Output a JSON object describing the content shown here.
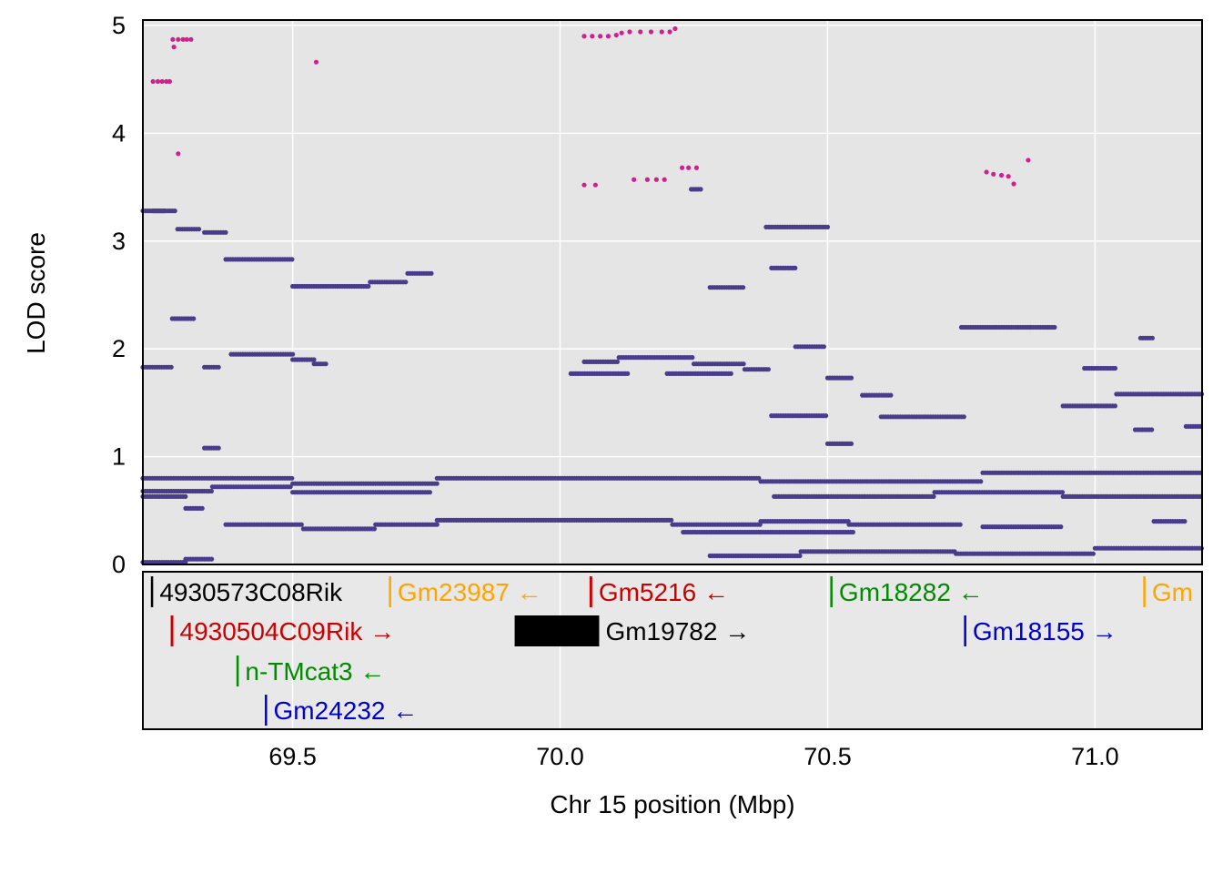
{
  "chart_data": {
    "type": "scatter",
    "title": "",
    "xlabel": "Chr 15 position (Mbp)",
    "ylabel": "LOD score",
    "xlim": [
      69.22,
      71.2
    ],
    "ylim": [
      0,
      5.05
    ],
    "x_ticks": [
      69.5,
      70.0,
      70.5,
      71.0
    ],
    "x_tick_labels": [
      "69.5",
      "70.0",
      "70.5",
      "71.0"
    ],
    "y_ticks": [
      0,
      1,
      2,
      3,
      4,
      5
    ],
    "y_tick_labels": [
      "0",
      "1",
      "2",
      "3",
      "4",
      "5"
    ],
    "grid": true,
    "colors": {
      "panel_bg": "#e5e5e5",
      "grid": "#ffffff",
      "points": "#483d8b",
      "highlight_points": "#d02090",
      "gene_black": "#000000",
      "gene_red": "#cc0000",
      "gene_orange": "#ffa500",
      "gene_green": "#008b00",
      "gene_blue": "#0000cd"
    },
    "highlight_points": [
      {
        "x": 69.239,
        "y": 4.48
      },
      {
        "x": 69.248,
        "y": 4.48
      },
      {
        "x": 69.256,
        "y": 4.48
      },
      {
        "x": 69.264,
        "y": 4.48
      },
      {
        "x": 69.27,
        "y": 4.48
      },
      {
        "x": 69.276,
        "y": 4.87
      },
      {
        "x": 69.278,
        "y": 4.8
      },
      {
        "x": 69.286,
        "y": 4.87
      },
      {
        "x": 69.295,
        "y": 4.87
      },
      {
        "x": 69.302,
        "y": 4.87
      },
      {
        "x": 69.31,
        "y": 4.87
      },
      {
        "x": 69.286,
        "y": 3.81
      },
      {
        "x": 69.544,
        "y": 4.66
      },
      {
        "x": 70.045,
        "y": 4.9
      },
      {
        "x": 70.06,
        "y": 4.9
      },
      {
        "x": 70.075,
        "y": 4.9
      },
      {
        "x": 70.09,
        "y": 4.9
      },
      {
        "x": 70.105,
        "y": 4.91
      },
      {
        "x": 70.115,
        "y": 4.93
      },
      {
        "x": 70.13,
        "y": 4.94
      },
      {
        "x": 70.15,
        "y": 4.94
      },
      {
        "x": 70.17,
        "y": 4.94
      },
      {
        "x": 70.19,
        "y": 4.94
      },
      {
        "x": 70.205,
        "y": 4.94
      },
      {
        "x": 70.215,
        "y": 4.97
      },
      {
        "x": 70.045,
        "y": 3.52
      },
      {
        "x": 70.066,
        "y": 3.52
      },
      {
        "x": 70.138,
        "y": 3.57
      },
      {
        "x": 70.163,
        "y": 3.57
      },
      {
        "x": 70.18,
        "y": 3.57
      },
      {
        "x": 70.195,
        "y": 3.57
      },
      {
        "x": 70.228,
        "y": 3.68
      },
      {
        "x": 70.24,
        "y": 3.68
      },
      {
        "x": 70.255,
        "y": 3.68
      },
      {
        "x": 70.797,
        "y": 3.64
      },
      {
        "x": 70.81,
        "y": 3.62
      },
      {
        "x": 70.825,
        "y": 3.61
      },
      {
        "x": 70.838,
        "y": 3.6
      },
      {
        "x": 70.848,
        "y": 3.53
      },
      {
        "x": 70.875,
        "y": 3.75
      }
    ],
    "point_segments": [
      {
        "x0": 69.22,
        "x1": 69.26,
        "y": 3.28
      },
      {
        "x0": 69.24,
        "x1": 69.28,
        "y": 3.28
      },
      {
        "x0": 69.285,
        "x1": 69.325,
        "y": 3.11
      },
      {
        "x0": 69.335,
        "x1": 69.375,
        "y": 3.08
      },
      {
        "x0": 69.375,
        "x1": 69.5,
        "y": 2.83
      },
      {
        "x0": 69.5,
        "x1": 69.645,
        "y": 2.58
      },
      {
        "x0": 69.645,
        "x1": 69.715,
        "y": 2.62
      },
      {
        "x0": 69.715,
        "x1": 69.76,
        "y": 2.7
      },
      {
        "x0": 69.275,
        "x1": 69.315,
        "y": 2.28
      },
      {
        "x0": 69.22,
        "x1": 69.275,
        "y": 1.83
      },
      {
        "x0": 69.335,
        "x1": 69.365,
        "y": 1.83
      },
      {
        "x0": 69.385,
        "x1": 69.5,
        "y": 1.95
      },
      {
        "x0": 69.5,
        "x1": 69.54,
        "y": 1.9
      },
      {
        "x0": 69.54,
        "x1": 69.565,
        "y": 1.86
      },
      {
        "x0": 70.045,
        "x1": 70.11,
        "y": 1.88
      },
      {
        "x0": 70.11,
        "x1": 70.25,
        "y": 1.92
      },
      {
        "x0": 70.25,
        "x1": 70.345,
        "y": 1.86
      },
      {
        "x0": 70.345,
        "x1": 70.39,
        "y": 1.81
      },
      {
        "x0": 70.02,
        "x1": 70.13,
        "y": 1.77
      },
      {
        "x0": 70.2,
        "x1": 70.32,
        "y": 1.77
      },
      {
        "x0": 70.245,
        "x1": 70.265,
        "y": 3.48
      },
      {
        "x0": 70.385,
        "x1": 70.5,
        "y": 3.13
      },
      {
        "x0": 70.44,
        "x1": 70.495,
        "y": 2.02
      },
      {
        "x0": 70.28,
        "x1": 70.345,
        "y": 2.57
      },
      {
        "x0": 70.395,
        "x1": 70.44,
        "y": 2.75
      },
      {
        "x0": 70.75,
        "x1": 70.88,
        "y": 2.2
      },
      {
        "x0": 70.88,
        "x1": 70.925,
        "y": 2.2
      },
      {
        "x0": 70.565,
        "x1": 70.62,
        "y": 1.57
      },
      {
        "x0": 70.6,
        "x1": 70.755,
        "y": 1.37
      },
      {
        "x0": 70.94,
        "x1": 71.04,
        "y": 1.47
      },
      {
        "x0": 71.04,
        "x1": 71.2,
        "y": 1.58
      },
      {
        "x0": 70.395,
        "x1": 70.5,
        "y": 1.38
      },
      {
        "x0": 70.5,
        "x1": 70.545,
        "y": 1.73
      },
      {
        "x0": 70.5,
        "x1": 70.545,
        "y": 1.12
      },
      {
        "x0": 70.98,
        "x1": 71.04,
        "y": 1.82
      },
      {
        "x0": 71.075,
        "x1": 71.11,
        "y": 1.25
      },
      {
        "x0": 71.17,
        "x1": 71.2,
        "y": 1.28
      },
      {
        "x0": 71.085,
        "x1": 71.11,
        "y": 2.1
      },
      {
        "x0": 69.335,
        "x1": 69.365,
        "y": 1.08
      },
      {
        "x0": 69.22,
        "x1": 69.5,
        "y": 0.8
      },
      {
        "x0": 69.5,
        "x1": 69.77,
        "y": 0.75
      },
      {
        "x0": 69.77,
        "x1": 70.375,
        "y": 0.8
      },
      {
        "x0": 70.375,
        "x1": 70.79,
        "y": 0.77
      },
      {
        "x0": 70.79,
        "x1": 71.2,
        "y": 0.85
      },
      {
        "x0": 69.22,
        "x1": 69.35,
        "y": 0.68
      },
      {
        "x0": 69.35,
        "x1": 69.5,
        "y": 0.72
      },
      {
        "x0": 69.5,
        "x1": 69.76,
        "y": 0.67
      },
      {
        "x0": 70.4,
        "x1": 70.57,
        "y": 0.63
      },
      {
        "x0": 70.57,
        "x1": 70.7,
        "y": 0.63
      },
      {
        "x0": 70.7,
        "x1": 70.94,
        "y": 0.67
      },
      {
        "x0": 70.94,
        "x1": 71.2,
        "y": 0.63
      },
      {
        "x0": 69.22,
        "x1": 69.3,
        "y": 0.63
      },
      {
        "x0": 69.3,
        "x1": 69.335,
        "y": 0.52
      },
      {
        "x0": 69.375,
        "x1": 69.52,
        "y": 0.37
      },
      {
        "x0": 69.52,
        "x1": 69.655,
        "y": 0.33
      },
      {
        "x0": 69.655,
        "x1": 69.77,
        "y": 0.37
      },
      {
        "x0": 69.77,
        "x1": 70.21,
        "y": 0.41
      },
      {
        "x0": 70.21,
        "x1": 70.375,
        "y": 0.37
      },
      {
        "x0": 70.375,
        "x1": 70.54,
        "y": 0.4
      },
      {
        "x0": 70.54,
        "x1": 70.75,
        "y": 0.37
      },
      {
        "x0": 70.79,
        "x1": 70.94,
        "y": 0.35
      },
      {
        "x0": 71.11,
        "x1": 71.17,
        "y": 0.4
      },
      {
        "x0": 70.23,
        "x1": 70.375,
        "y": 0.3
      },
      {
        "x0": 70.375,
        "x1": 70.55,
        "y": 0.3
      },
      {
        "x0": 69.22,
        "x1": 69.3,
        "y": 0.02
      },
      {
        "x0": 69.3,
        "x1": 69.35,
        "y": 0.05
      },
      {
        "x0": 70.28,
        "x1": 70.45,
        "y": 0.08
      },
      {
        "x0": 70.45,
        "x1": 70.74,
        "y": 0.12
      },
      {
        "x0": 70.74,
        "x1": 71.0,
        "y": 0.1
      },
      {
        "x0": 71.0,
        "x1": 71.2,
        "y": 0.15
      }
    ],
    "genes": [
      {
        "name": "4930573C08Rik",
        "start": 69.235,
        "end": 69.238,
        "row": 0,
        "strand": "",
        "color": "black"
      },
      {
        "name": "Gm23987",
        "start": 69.68,
        "end": 69.683,
        "row": 0,
        "strand": "←",
        "color": "orange"
      },
      {
        "name": "Gm5216",
        "start": 70.055,
        "end": 70.06,
        "row": 0,
        "strand": "←",
        "color": "red"
      },
      {
        "name": "Gm18282",
        "start": 70.505,
        "end": 70.508,
        "row": 0,
        "strand": "←",
        "color": "green"
      },
      {
        "name": "Gm",
        "start": 71.09,
        "end": 71.093,
        "row": 0,
        "strand": "",
        "color": "orange"
      },
      {
        "name": "4930504C09Rik",
        "start": 69.272,
        "end": 69.277,
        "row": 1,
        "strand": "→",
        "color": "red"
      },
      {
        "name": "Gm19782",
        "start": 69.915,
        "end": 70.073,
        "row": 1,
        "strand": "→",
        "color": "black"
      },
      {
        "name": "Gm18155",
        "start": 70.755,
        "end": 70.758,
        "row": 1,
        "strand": "→",
        "color": "blue"
      },
      {
        "name": "n-TMcat3",
        "start": 69.395,
        "end": 69.398,
        "row": 2,
        "strand": "←",
        "color": "green"
      },
      {
        "name": "Gm24232",
        "start": 69.448,
        "end": 69.451,
        "row": 3,
        "strand": "←",
        "color": "blue"
      }
    ]
  }
}
